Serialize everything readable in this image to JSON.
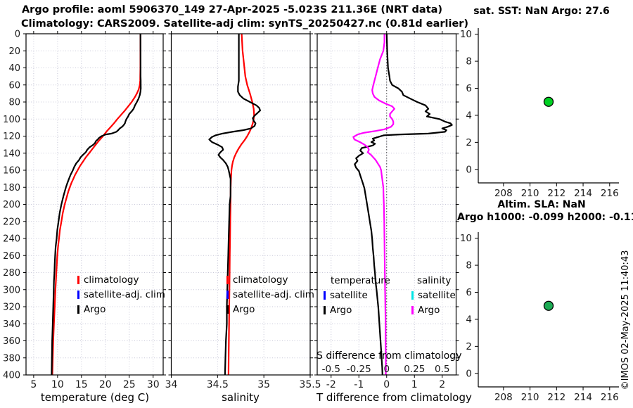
{
  "header": {
    "title_line1": "Argo profile: aoml 5906370_149 27-Apr-2025 -5.023S 211.36E (NRT data)",
    "title_line2": "Climatology: CARS2009. Satellite-adj clim: synTS_20250427.nc (0.81d earlier)"
  },
  "watermark": "©IMOS 02-May-2025 11:40:43",
  "colors": {
    "climatology": "#ff0000",
    "satellite_adj_clim": "#0000ff",
    "argo": "#000000",
    "satellite_salinity": "#00e5e5",
    "argo_salinity": "#ff00ff",
    "sst_marker": "#00d022",
    "sla_marker": "#1cab54",
    "grid": "#c9c9d9"
  },
  "chart_data": [
    {
      "type": "line",
      "xlabel": "temperature (deg C)",
      "ylabel": "",
      "xlim": [
        3.4,
        32.1
      ],
      "ylim": [
        0,
        400
      ],
      "xticks": [
        5,
        10,
        15,
        20,
        25,
        30
      ],
      "xtick_labels": [
        "5",
        "10",
        "15",
        "20",
        "25",
        "30"
      ],
      "yticks": [
        0,
        20,
        40,
        60,
        80,
        100,
        120,
        140,
        160,
        180,
        200,
        220,
        240,
        260,
        280,
        300,
        320,
        340,
        360,
        380,
        400
      ],
      "ytick_labels": [
        "0",
        "20",
        "40",
        "60",
        "80",
        "100",
        "120",
        "140",
        "160",
        "180",
        "200",
        "220",
        "240",
        "260",
        "280",
        "300",
        "320",
        "340",
        "360",
        "380",
        "400"
      ],
      "show_ytick_labels": true,
      "grid": true,
      "legend": {
        "items": [
          {
            "label": "climatology",
            "color": "#ff0000"
          },
          {
            "label": "satellite-adj. clim",
            "color": "#0000ff"
          },
          {
            "label": "Argo",
            "color": "#000000"
          }
        ]
      },
      "series": [
        {
          "name": "climatology",
          "color": "#ff0000",
          "scale": 1,
          "depths": [
            0,
            40,
            50,
            55,
            60,
            65,
            70,
            75,
            80,
            85,
            90,
            95,
            100,
            105,
            110,
            115,
            120,
            125,
            130,
            135,
            140,
            145,
            150,
            155,
            160,
            165,
            170,
            175,
            180,
            185,
            190,
            195,
            200,
            210,
            220,
            230,
            240,
            250,
            260,
            270,
            280,
            290,
            300,
            320,
            340,
            360,
            380,
            400
          ],
          "values": [
            27.35,
            27.33,
            27.3,
            27.28,
            27.2,
            27.0,
            26.6,
            26.1,
            25.5,
            24.8,
            24.1,
            23.3,
            22.5,
            21.8,
            21.0,
            20.2,
            19.5,
            18.7,
            18.0,
            17.3,
            16.6,
            15.9,
            15.3,
            14.7,
            14.2,
            13.7,
            13.3,
            12.9,
            12.55,
            12.25,
            12.0,
            11.75,
            11.5,
            11.1,
            10.8,
            10.5,
            10.3,
            10.1,
            9.95,
            9.85,
            9.75,
            9.65,
            9.55,
            9.4,
            9.25,
            9.1,
            9.0,
            8.9
          ]
        },
        {
          "name": "Argo",
          "color": "#000000",
          "scale": 1,
          "depths": [
            0,
            20,
            40,
            50,
            55,
            60,
            64,
            68,
            72,
            76,
            80,
            84,
            88,
            91,
            94,
            97,
            100,
            103,
            105,
            107,
            109,
            111,
            113,
            115,
            117,
            118,
            120,
            122,
            124,
            126,
            128,
            130,
            133,
            136,
            139,
            142,
            145,
            148,
            152,
            156,
            160,
            165,
            170,
            175,
            180,
            190,
            200,
            210,
            220,
            230,
            240,
            250,
            260,
            270,
            280,
            290,
            300,
            320,
            340,
            360,
            380,
            400
          ],
          "values": [
            27.35,
            27.36,
            27.38,
            27.38,
            27.4,
            27.4,
            27.42,
            27.35,
            27.2,
            26.95,
            26.6,
            26.2,
            25.9,
            25.5,
            25.0,
            24.75,
            24.4,
            24.2,
            24.1,
            23.85,
            23.5,
            23.0,
            22.7,
            22.3,
            21.3,
            20.1,
            19.2,
            18.7,
            18.4,
            18.0,
            17.85,
            17.5,
            16.7,
            16.2,
            15.9,
            15.3,
            14.8,
            14.5,
            13.9,
            13.5,
            13.2,
            12.75,
            12.4,
            12.05,
            11.75,
            11.25,
            10.8,
            10.45,
            10.2,
            9.95,
            9.8,
            9.6,
            9.5,
            9.4,
            9.35,
            9.25,
            9.2,
            9.1,
            9.0,
            8.88,
            8.82,
            8.75
          ]
        }
      ]
    },
    {
      "type": "line",
      "xlabel": "salinity",
      "ylabel": "",
      "xlim": [
        34,
        35.5
      ],
      "ylim": [
        0,
        400
      ],
      "xticks": [
        34,
        34.5,
        35,
        35.5
      ],
      "xtick_labels": [
        "34",
        "34.5",
        "35",
        "35.5"
      ],
      "yticks": [
        0,
        20,
        40,
        60,
        80,
        100,
        120,
        140,
        160,
        180,
        200,
        220,
        240,
        260,
        280,
        300,
        320,
        340,
        360,
        380,
        400
      ],
      "show_ytick_labels": false,
      "grid": true,
      "legend": {
        "items": [
          {
            "label": "climatology",
            "color": "#ff0000"
          },
          {
            "label": "satellite-adj. clim",
            "color": "#0000ff"
          },
          {
            "label": "Argo",
            "color": "#000000"
          }
        ]
      },
      "series": [
        {
          "name": "climatology",
          "color": "#ff0000",
          "scale": 1,
          "depths": [
            0,
            20,
            40,
            50,
            60,
            70,
            80,
            88,
            95,
            100,
            105,
            110,
            115,
            120,
            125,
            130,
            135,
            140,
            145,
            150,
            155,
            160,
            170,
            180,
            200,
            220,
            240,
            260,
            280,
            300,
            320,
            340,
            360,
            380,
            400
          ],
          "values": [
            34.76,
            34.77,
            34.79,
            34.8,
            34.82,
            34.85,
            34.875,
            34.89,
            34.895,
            34.89,
            34.88,
            34.865,
            34.845,
            34.82,
            34.79,
            34.755,
            34.725,
            34.7,
            34.68,
            34.665,
            34.656,
            34.65,
            34.645,
            34.642,
            34.64,
            34.637,
            34.635,
            34.632,
            34.63,
            34.628,
            34.626,
            34.624,
            34.622,
            34.62,
            34.618
          ]
        },
        {
          "name": "Argo",
          "color": "#000000",
          "scale": 1,
          "depths": [
            0,
            30,
            55,
            62,
            68,
            72,
            76,
            80,
            84,
            87,
            90,
            93,
            96,
            99,
            102,
            105,
            108,
            111,
            113,
            115,
            117,
            119,
            121,
            124,
            127,
            130,
            133,
            136,
            139,
            142,
            145,
            148,
            152,
            156,
            160,
            165,
            170,
            180,
            190,
            200,
            220,
            240,
            260,
            280,
            300,
            320,
            340,
            360,
            380,
            400
          ],
          "values": [
            34.73,
            34.73,
            34.73,
            34.72,
            34.72,
            34.74,
            34.78,
            34.85,
            34.92,
            34.95,
            34.96,
            34.93,
            34.9,
            34.88,
            34.89,
            34.91,
            34.9,
            34.86,
            34.78,
            34.66,
            34.55,
            34.48,
            34.44,
            34.41,
            34.44,
            34.5,
            34.55,
            34.56,
            34.53,
            34.51,
            34.53,
            34.56,
            34.59,
            34.61,
            34.62,
            34.63,
            34.64,
            34.64,
            34.64,
            34.63,
            34.625,
            34.62,
            34.615,
            34.61,
            34.605,
            34.6,
            34.6,
            34.59,
            34.585,
            34.58
          ]
        }
      ]
    },
    {
      "type": "line",
      "xlabel": "T difference from climatology",
      "ylabel": "",
      "xlim": [
        -2.5,
        2.5
      ],
      "ylim": [
        0,
        400
      ],
      "xticks": [
        -2,
        -1,
        0,
        1,
        2
      ],
      "xtick_labels": [
        "-2",
        "-1",
        "0",
        "1",
        "2"
      ],
      "yticks": [
        0,
        20,
        40,
        60,
        80,
        100,
        120,
        140,
        160,
        180,
        200,
        220,
        240,
        260,
        280,
        300,
        320,
        340,
        360,
        380,
        400
      ],
      "show_ytick_labels": false,
      "grid": true,
      "zero_line": true,
      "s_note": "S difference from climatology",
      "s_tick_values": [
        -2,
        -1,
        0,
        1,
        2
      ],
      "s_tick_labels": [
        "-0.5",
        "-0.25",
        "0",
        "0.25",
        "0.5"
      ],
      "legend_groups": [
        {
          "header": "temperature",
          "items": [
            {
              "label": "satellite",
              "color": "#0000ff"
            },
            {
              "label": "Argo",
              "color": "#000000"
            }
          ]
        },
        {
          "header": "salinity",
          "items": [
            {
              "label": "satellite",
              "color": "#00e5e5"
            },
            {
              "label": "Argo",
              "color": "#ff00ff"
            }
          ]
        }
      ],
      "series": [
        {
          "name": "Argo T diff",
          "color": "#000000",
          "scale": 1,
          "depths": [
            0,
            20,
            40,
            50,
            55,
            60,
            64,
            68,
            72,
            76,
            80,
            84,
            88,
            91,
            94,
            97,
            100,
            103,
            105,
            107,
            109,
            111,
            113,
            115,
            117,
            118,
            119,
            121,
            123,
            125,
            127,
            129,
            131,
            134,
            137,
            140,
            143,
            146,
            149,
            153,
            157,
            161,
            166,
            171,
            176,
            181,
            191,
            201,
            211,
            221,
            231,
            241,
            251,
            261,
            271,
            281,
            291,
            301,
            311,
            321,
            331,
            341,
            351,
            361,
            371,
            381,
            391,
            400
          ],
          "values": [
            0.0,
            0.02,
            0.05,
            0.1,
            0.12,
            0.2,
            0.42,
            0.55,
            0.6,
            0.85,
            1.1,
            1.4,
            1.5,
            1.4,
            1.55,
            1.45,
            1.9,
            2.1,
            2.3,
            2.35,
            2.2,
            2.0,
            2.15,
            2.1,
            1.5,
            0.5,
            -0.1,
            -0.3,
            -0.5,
            -0.45,
            -0.55,
            -0.42,
            -0.5,
            -0.9,
            -0.95,
            -0.85,
            -1.0,
            -1.1,
            -1.05,
            -1.15,
            -1.1,
            -1.0,
            -0.95,
            -0.9,
            -0.85,
            -0.8,
            -0.75,
            -0.7,
            -0.65,
            -0.6,
            -0.55,
            -0.52,
            -0.5,
            -0.47,
            -0.45,
            -0.42,
            -0.4,
            -0.36,
            -0.33,
            -0.3,
            -0.28,
            -0.26,
            -0.24,
            -0.22,
            -0.2,
            -0.18,
            -0.16,
            -0.15
          ]
        },
        {
          "name": "Argo S diff",
          "color": "#ff00ff",
          "scale": 4,
          "depths": [
            0,
            10,
            20,
            30,
            40,
            50,
            60,
            66,
            70,
            74,
            78,
            82,
            85,
            88,
            91,
            94,
            97,
            100,
            103,
            106,
            109,
            112,
            114,
            116,
            118,
            121,
            124,
            127,
            130,
            133,
            136,
            139,
            142,
            145,
            148,
            152,
            156,
            160,
            165,
            170,
            180,
            190,
            200,
            220,
            240,
            260,
            280,
            300,
            320,
            340,
            360,
            380,
            400
          ],
          "values": [
            -0.02,
            -0.02,
            -0.03,
            -0.06,
            -0.08,
            -0.1,
            -0.12,
            -0.13,
            -0.125,
            -0.11,
            -0.07,
            -0.01,
            0.05,
            0.07,
            0.05,
            0.03,
            0.03,
            0.05,
            0.06,
            0.06,
            0.04,
            -0.02,
            -0.1,
            -0.2,
            -0.26,
            -0.3,
            -0.29,
            -0.24,
            -0.2,
            -0.17,
            -0.16,
            -0.17,
            -0.14,
            -0.12,
            -0.1,
            -0.08,
            -0.06,
            -0.05,
            -0.045,
            -0.04,
            -0.03,
            -0.028,
            -0.025,
            -0.022,
            -0.02,
            -0.018,
            -0.016,
            -0.014,
            -0.012,
            -0.01,
            -0.01,
            -0.008,
            -0.008
          ]
        }
      ]
    },
    {
      "type": "scatter",
      "title": "sat. SST: NaN Argo: 27.6",
      "xlim": [
        206.1,
        216.7
      ],
      "ylim": [
        -1,
        10.45
      ],
      "xticks": [
        208,
        210,
        212,
        214,
        216
      ],
      "xtick_labels": [
        "208",
        "210",
        "212",
        "214",
        "216"
      ],
      "yticks": [
        0,
        2,
        4,
        6,
        8,
        10
      ],
      "ytick_labels": [
        "0",
        "2",
        "4",
        "6",
        "8",
        "10"
      ],
      "x": [
        211.4
      ],
      "y": [
        5
      ],
      "marker_color": "#00d022"
    },
    {
      "type": "scatter",
      "title_line1": "Altim. SLA: NaN",
      "title_line2": "Argo h1000: -0.099 h2000: -0.11",
      "xlim": [
        206.1,
        216.7
      ],
      "ylim": [
        -1,
        10.45
      ],
      "xticks": [
        208,
        210,
        212,
        214,
        216
      ],
      "xtick_labels": [
        "208",
        "210",
        "212",
        "214",
        "216"
      ],
      "yticks": [
        0,
        2,
        4,
        6,
        8,
        10
      ],
      "ytick_labels": [
        "0",
        "2",
        "4",
        "6",
        "8",
        "10"
      ],
      "x": [
        211.4
      ],
      "y": [
        5
      ],
      "marker_color": "#1cab54"
    }
  ]
}
